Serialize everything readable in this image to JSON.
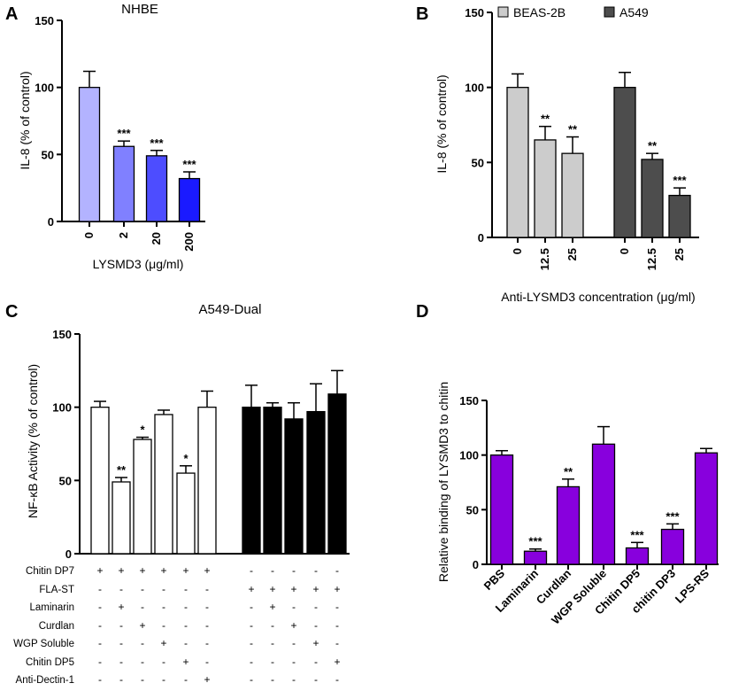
{
  "chart_data": [
    {
      "panel": "A",
      "type": "bar",
      "title": "NHBE",
      "xlabel": "LYSMD3 (μg/ml)",
      "ylabel": "IL-8 (% of control)",
      "ylim": [
        0,
        150
      ],
      "yticks": [
        "0",
        "50",
        "100",
        "150"
      ],
      "categories": [
        "0",
        "2",
        "20",
        "200"
      ],
      "values": [
        100,
        56,
        49,
        32
      ],
      "errors": [
        12,
        4,
        4,
        5
      ],
      "significance": [
        "",
        "***",
        "***",
        "***"
      ],
      "colors": [
        "#b3b3ff",
        "#8080ff",
        "#4d4dff",
        "#1a1aff"
      ]
    },
    {
      "panel": "B",
      "type": "bar",
      "xlabel": "Anti-LYSMD3 concentration (μg/ml)",
      "ylabel": "IL-8 (% of control)",
      "ylim": [
        0,
        150
      ],
      "yticks": [
        "0",
        "50",
        "100",
        "150"
      ],
      "legend": [
        "BEAS-2B",
        "A549"
      ],
      "series": [
        {
          "name": "BEAS-2B",
          "categories": [
            "0",
            "12.5",
            "25"
          ],
          "values": [
            100,
            65,
            56
          ],
          "errors": [
            9,
            9,
            11
          ],
          "significance": [
            "",
            "**",
            "**"
          ],
          "color": "#cccccc"
        },
        {
          "name": "A549",
          "categories": [
            "0",
            "12.5",
            "25"
          ],
          "values": [
            100,
            52,
            28
          ],
          "errors": [
            10,
            4,
            5
          ],
          "significance": [
            "",
            "**",
            "***"
          ],
          "color": "#4d4d4d"
        }
      ]
    },
    {
      "panel": "C",
      "type": "bar",
      "title": "A549-Dual",
      "ylabel": "NF-κB Activity (% of control)",
      "ylim": [
        0,
        150
      ],
      "yticks": [
        "0",
        "50",
        "100",
        "150"
      ],
      "groups": [
        {
          "name": "Chitin DP7",
          "values": [
            100,
            49,
            78,
            95,
            55,
            100
          ],
          "errors": [
            4,
            3,
            1.5,
            3,
            5,
            11
          ],
          "significance": [
            "",
            "**",
            "*",
            "",
            "*",
            ""
          ],
          "color": "#ffffff"
        },
        {
          "name": "FLA-ST",
          "values": [
            100,
            100,
            92,
            97,
            109
          ],
          "errors": [
            15,
            3,
            11,
            19,
            16
          ],
          "significance": [
            "",
            "",
            "",
            "",
            ""
          ],
          "color": "#000000"
        }
      ],
      "table": {
        "rows": [
          "Chitin DP7",
          "FLA-ST",
          "Laminarin",
          "Curdlan",
          "WGP Soluble",
          "Chitin DP5",
          "Anti-Dectin-1"
        ],
        "white": [
          [
            "+",
            "+",
            "+",
            "+",
            "+",
            "+"
          ],
          [
            "-",
            "-",
            "-",
            "-",
            "-",
            "-"
          ],
          [
            "-",
            "+",
            "-",
            "-",
            "-",
            "-"
          ],
          [
            "-",
            "-",
            "+",
            "-",
            "-",
            "-"
          ],
          [
            "-",
            "-",
            "-",
            "+",
            "-",
            "-"
          ],
          [
            "-",
            "-",
            "-",
            "-",
            "+",
            "-"
          ],
          [
            "-",
            "-",
            "-",
            "-",
            "-",
            "+"
          ]
        ],
        "black": [
          [
            "-",
            "-",
            "-",
            "-",
            "-"
          ],
          [
            "+",
            "+",
            "+",
            "+",
            "+"
          ],
          [
            "-",
            "+",
            "-",
            "-",
            "-"
          ],
          [
            "-",
            "-",
            "+",
            "-",
            "-"
          ],
          [
            "-",
            "-",
            "-",
            "+",
            "-"
          ],
          [
            "-",
            "-",
            "-",
            "-",
            "+"
          ],
          [
            "-",
            "-",
            "-",
            "-",
            "-"
          ]
        ]
      }
    },
    {
      "panel": "D",
      "type": "bar",
      "ylabel": "Relative binding of LYSMD3 to chitin",
      "ylim": [
        0,
        150
      ],
      "yticks": [
        "0",
        "50",
        "100",
        "150"
      ],
      "categories": [
        "PBS",
        "Laminarin",
        "Curdlan",
        "WGP Soluble",
        "Chitin DP5",
        "chitin DP3",
        "LPS-RS"
      ],
      "values": [
        100,
        12,
        71,
        110,
        15,
        32,
        102
      ],
      "errors": [
        4,
        2,
        7,
        16,
        5,
        5,
        4
      ],
      "significance": [
        "",
        "***",
        "**",
        "",
        "***",
        "***",
        ""
      ],
      "color": "#8800dd"
    }
  ],
  "panel_letters": [
    "A",
    "B",
    "C",
    "D"
  ]
}
